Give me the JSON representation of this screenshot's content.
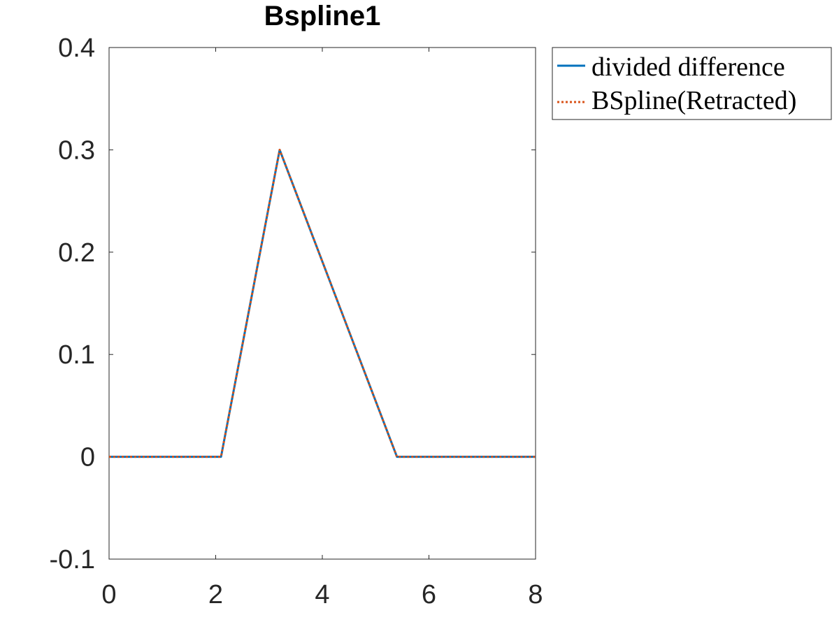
{
  "chart_data": {
    "type": "line",
    "title": "Bspline1",
    "xlabel": "",
    "ylabel": "",
    "xlim": [
      0,
      8
    ],
    "ylim": [
      -0.1,
      0.4
    ],
    "xticks": [
      0,
      2,
      4,
      6,
      8
    ],
    "xtick_labels": [
      "0",
      "2",
      "4",
      "6",
      "8"
    ],
    "yticks": [
      -0.1,
      0,
      0.1,
      0.2,
      0.3,
      0.4
    ],
    "ytick_labels": [
      "-0.1",
      "0",
      "0.1",
      "0.2",
      "0.3",
      "0.4"
    ],
    "grid": false,
    "legend_position": "outside-top-right",
    "series": [
      {
        "name": "divided difference",
        "color": "#0072BD",
        "style": "solid",
        "x": [
          0,
          2.1,
          3.2,
          4.3,
          5.4,
          8
        ],
        "y": [
          0,
          0,
          0.3,
          0.15,
          0,
          0
        ]
      },
      {
        "name": "BSpline(Retracted)",
        "color": "#D95319",
        "style": "dotted",
        "x": [
          0,
          2.1,
          3.2,
          4.3,
          5.4,
          8
        ],
        "y": [
          0,
          0,
          0.3,
          0.15,
          0,
          0
        ]
      }
    ]
  }
}
